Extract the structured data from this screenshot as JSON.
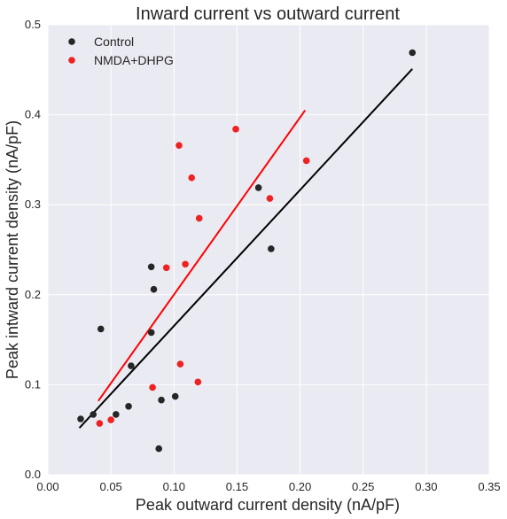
{
  "chart_data": {
    "type": "scatter",
    "title": "Inward current vs outward current",
    "xlabel": "Peak outward current density (nA/pF)",
    "ylabel": "Peak intward current density (nA/pF)",
    "xlim": [
      0.0,
      0.35
    ],
    "ylim": [
      0.0,
      0.5
    ],
    "x_ticks": [
      "0.00",
      "0.05",
      "0.10",
      "0.15",
      "0.20",
      "0.25",
      "0.30",
      "0.35"
    ],
    "y_ticks": [
      "0.0",
      "0.1",
      "0.2",
      "0.3",
      "0.4",
      "0.5"
    ],
    "grid": true,
    "legend_position": "top-left",
    "series": [
      {
        "name": "Control",
        "color": "#262626",
        "points": [
          {
            "x": 0.026,
            "y": 0.062
          },
          {
            "x": 0.036,
            "y": 0.067
          },
          {
            "x": 0.042,
            "y": 0.162
          },
          {
            "x": 0.054,
            "y": 0.067
          },
          {
            "x": 0.064,
            "y": 0.076
          },
          {
            "x": 0.066,
            "y": 0.121
          },
          {
            "x": 0.082,
            "y": 0.231
          },
          {
            "x": 0.082,
            "y": 0.158
          },
          {
            "x": 0.084,
            "y": 0.206
          },
          {
            "x": 0.088,
            "y": 0.029
          },
          {
            "x": 0.09,
            "y": 0.083
          },
          {
            "x": 0.101,
            "y": 0.087
          },
          {
            "x": 0.167,
            "y": 0.319
          },
          {
            "x": 0.177,
            "y": 0.251
          },
          {
            "x": 0.289,
            "y": 0.469
          }
        ],
        "fit": {
          "x": [
            0.025,
            0.289
          ],
          "y": [
            0.052,
            0.451
          ]
        }
      },
      {
        "name": "NMDA+DHPG",
        "color": "#ee2222",
        "points": [
          {
            "x": 0.041,
            "y": 0.057
          },
          {
            "x": 0.05,
            "y": 0.061
          },
          {
            "x": 0.083,
            "y": 0.097
          },
          {
            "x": 0.094,
            "y": 0.23
          },
          {
            "x": 0.104,
            "y": 0.366
          },
          {
            "x": 0.105,
            "y": 0.123
          },
          {
            "x": 0.109,
            "y": 0.234
          },
          {
            "x": 0.114,
            "y": 0.33
          },
          {
            "x": 0.119,
            "y": 0.103
          },
          {
            "x": 0.12,
            "y": 0.285
          },
          {
            "x": 0.149,
            "y": 0.384
          },
          {
            "x": 0.176,
            "y": 0.307
          },
          {
            "x": 0.205,
            "y": 0.349
          }
        ],
        "fit": {
          "x": [
            0.04,
            0.204
          ],
          "y": [
            0.082,
            0.405
          ]
        }
      }
    ]
  }
}
